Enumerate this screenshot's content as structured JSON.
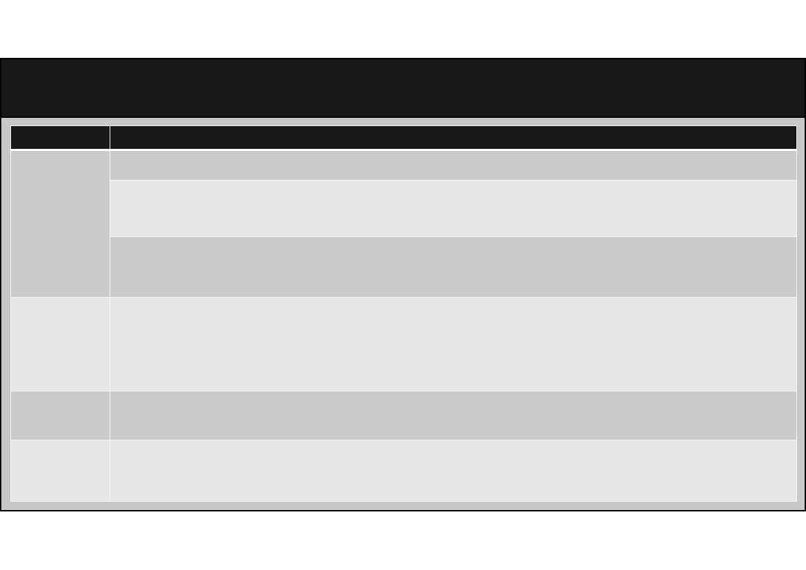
{
  "colors": {
    "header_background": "#181818",
    "panel_background": "#c8c8c8",
    "row_dark": "#cbcbcb",
    "row_light": "#e6e6e6",
    "grid_line": "#f4f4f4"
  },
  "table": {
    "headers": [
      "",
      ""
    ],
    "rows": [
      {
        "cells": [
          "",
          ""
        ]
      },
      {
        "cells": [
          ""
        ]
      },
      {
        "cells": [
          ""
        ]
      },
      {
        "cells": [
          "",
          ""
        ]
      },
      {
        "cells": [
          "",
          ""
        ]
      },
      {
        "cells": [
          "",
          ""
        ]
      }
    ]
  }
}
